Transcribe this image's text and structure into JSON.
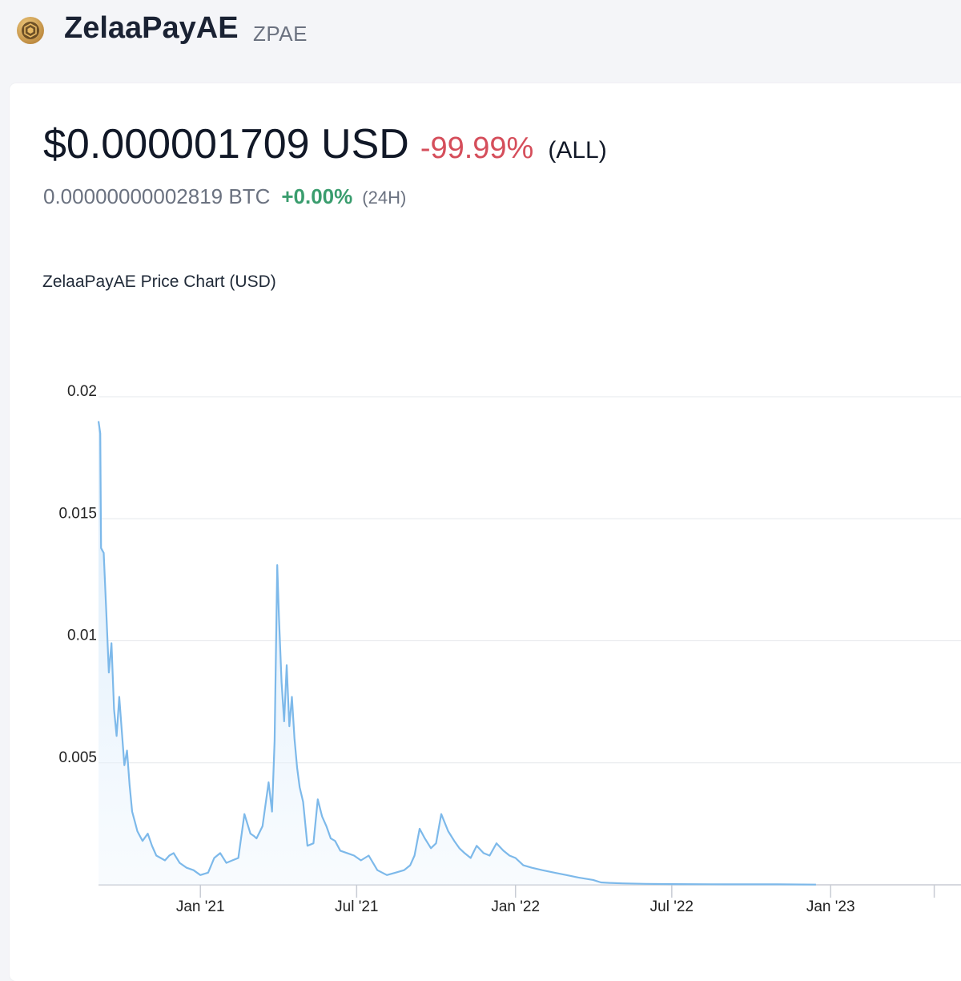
{
  "coin": {
    "name": "ZelaaPayAE",
    "symbol": "ZPAE",
    "logo_icon": "zelaapay-coin-icon"
  },
  "price": {
    "usd": "$0.000001709 USD",
    "change_all": "-99.99%",
    "period_all": "(ALL)",
    "btc": "0.00000000002819 BTC",
    "change_24h": "+0.00%",
    "period_24h": "(24H)"
  },
  "colors": {
    "line": "#7db9ea",
    "negative": "#d54e5b",
    "positive": "#3a9d6e"
  },
  "chart_data": {
    "type": "area",
    "title": "ZelaaPayAE Price Chart (USD)",
    "xlabel": "",
    "ylabel": "",
    "grid": true,
    "ylim": [
      0,
      0.02
    ],
    "yticks": [
      {
        "value": 0.02,
        "label": "0.02"
      },
      {
        "value": 0.015,
        "label": "0.015"
      },
      {
        "value": 0.01,
        "label": "0.01"
      },
      {
        "value": 0.005,
        "label": "0.005"
      }
    ],
    "xlim": [
      "2020-09-05",
      "2023-06-01"
    ],
    "xticks": [
      {
        "date": "2021-01-01",
        "label": "Jan '21"
      },
      {
        "date": "2021-07-01",
        "label": "Jul '21"
      },
      {
        "date": "2022-01-01",
        "label": "Jan '22"
      },
      {
        "date": "2022-07-01",
        "label": "Jul '22"
      },
      {
        "date": "2023-01-01",
        "label": "Jan '23"
      },
      {
        "date": "2023-05-01",
        "label": ""
      }
    ],
    "series": [
      {
        "x": [
          "2020-09-05",
          "2020-09-07",
          "2020-09-08",
          "2020-09-11",
          "2020-09-14",
          "2020-09-17",
          "2020-09-20",
          "2020-09-23",
          "2020-09-26",
          "2020-09-29",
          "2020-10-02",
          "2020-10-05",
          "2020-10-08",
          "2020-10-11",
          "2020-10-14",
          "2020-10-17",
          "2020-10-20",
          "2020-10-23",
          "2020-10-26",
          "2020-11-01",
          "2020-11-06",
          "2020-11-11",
          "2020-11-16",
          "2020-11-21",
          "2020-11-26",
          "2020-12-01",
          "2020-12-08",
          "2020-12-16",
          "2020-12-24",
          "2021-01-01",
          "2021-01-10",
          "2021-01-17",
          "2021-01-24",
          "2021-01-31",
          "2021-02-07",
          "2021-02-14",
          "2021-02-21",
          "2021-02-28",
          "2021-03-04",
          "2021-03-07",
          "2021-03-14",
          "2021-03-21",
          "2021-03-25",
          "2021-03-28",
          "2021-03-31",
          "2021-04-02",
          "2021-04-05",
          "2021-04-08",
          "2021-04-11",
          "2021-04-14",
          "2021-04-17",
          "2021-04-20",
          "2021-04-23",
          "2021-04-26",
          "2021-04-30",
          "2021-05-05",
          "2021-05-12",
          "2021-05-17",
          "2021-05-22",
          "2021-05-27",
          "2021-06-01",
          "2021-06-06",
          "2021-06-12",
          "2021-06-20",
          "2021-06-28",
          "2021-07-06",
          "2021-07-15",
          "2021-07-25",
          "2021-08-05",
          "2021-08-15",
          "2021-08-25",
          "2021-09-01",
          "2021-09-06",
          "2021-09-12",
          "2021-09-18",
          "2021-09-25",
          "2021-10-01",
          "2021-10-07",
          "2021-10-15",
          "2021-10-22",
          "2021-10-28",
          "2021-11-03",
          "2021-11-10",
          "2021-11-17",
          "2021-11-25",
          "2021-12-02",
          "2021-12-10",
          "2021-12-18",
          "2021-12-25",
          "2022-01-01",
          "2022-01-10",
          "2022-01-20",
          "2022-02-01",
          "2022-02-15",
          "2022-03-01",
          "2022-03-15",
          "2022-04-01",
          "2022-04-10",
          "2022-04-20",
          "2022-05-05",
          "2022-06-01",
          "2022-07-01",
          "2022-09-01",
          "2022-11-01",
          "2022-12-15"
        ],
        "values": [
          0.019,
          0.0185,
          0.0138,
          0.0136,
          0.0112,
          0.0087,
          0.0099,
          0.0072,
          0.0061,
          0.0077,
          0.0063,
          0.0049,
          0.0055,
          0.0041,
          0.003,
          0.0026,
          0.0022,
          0.002,
          0.0018,
          0.0021,
          0.0016,
          0.0012,
          0.0011,
          0.001,
          0.0012,
          0.0013,
          0.0009,
          0.0007,
          0.0006,
          0.0004,
          0.0005,
          0.0011,
          0.0013,
          0.0009,
          0.001,
          0.0011,
          0.0029,
          0.0021,
          0.002,
          0.0019,
          0.0024,
          0.0042,
          0.003,
          0.0059,
          0.0131,
          0.011,
          0.0083,
          0.0067,
          0.009,
          0.0065,
          0.0077,
          0.006,
          0.0048,
          0.004,
          0.0034,
          0.0016,
          0.0017,
          0.0035,
          0.0028,
          0.0024,
          0.0019,
          0.0018,
          0.0014,
          0.0013,
          0.0012,
          0.001,
          0.0012,
          0.0006,
          0.0004,
          0.0005,
          0.0006,
          0.0008,
          0.0012,
          0.0023,
          0.0019,
          0.0015,
          0.0017,
          0.0029,
          0.0022,
          0.0018,
          0.0015,
          0.0013,
          0.0011,
          0.0016,
          0.0013,
          0.0012,
          0.0017,
          0.0014,
          0.0012,
          0.0011,
          0.0008,
          0.0007,
          0.0006,
          0.0005,
          0.0004,
          0.0003,
          0.0002,
          0.0001,
          8e-05,
          6e-05,
          4e-05,
          3e-05,
          2e-05,
          2e-05,
          1e-05
        ]
      }
    ]
  }
}
